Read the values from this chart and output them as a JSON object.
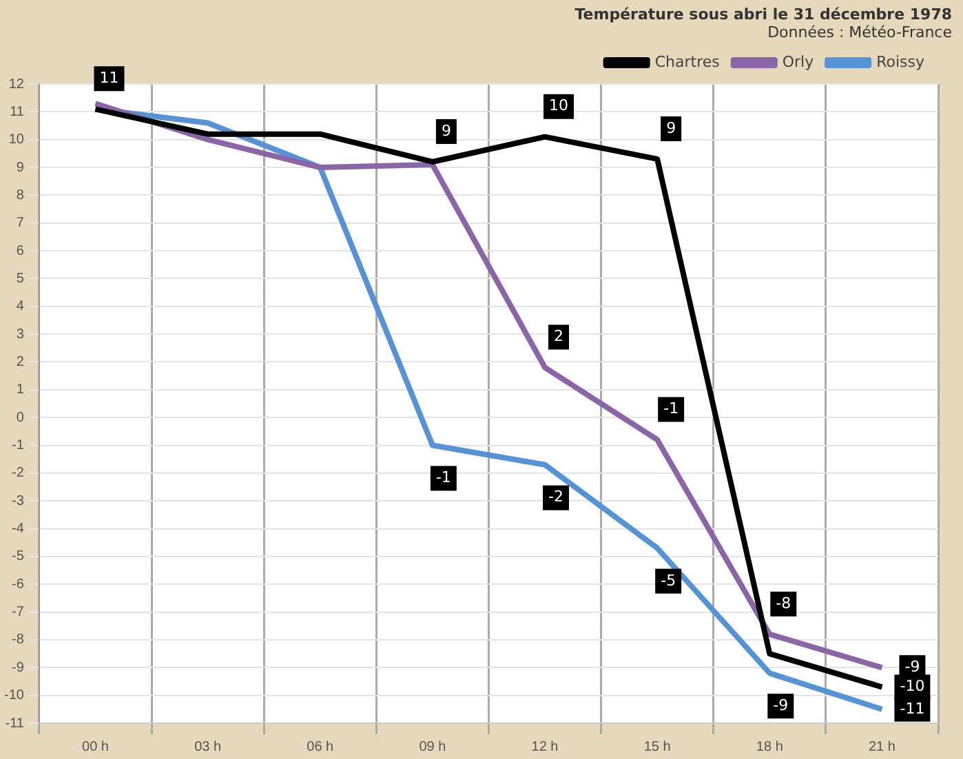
{
  "chart_data": {
    "type": "line",
    "title": "Température sous abri le 31 décembre 1978",
    "subtitle": "Données : Météo-France",
    "categories": [
      "00 h",
      "03 h",
      "06 h",
      "09 h",
      "12 h",
      "15 h",
      "18 h",
      "21 h"
    ],
    "series": [
      {
        "name": "Chartres",
        "color": "#000000",
        "values": [
          11.1,
          10.2,
          10.2,
          9.2,
          10.1,
          9.3,
          -8.5,
          -9.7
        ],
        "value_labels": [
          "11",
          null,
          null,
          "9",
          "10",
          "9",
          null,
          "-10"
        ]
      },
      {
        "name": "Orly",
        "color": "#8a65a8",
        "values": [
          11.3,
          10.0,
          9.0,
          9.1,
          1.8,
          -0.8,
          -7.8,
          -9.0
        ],
        "value_labels": [
          null,
          null,
          null,
          null,
          "2",
          "-1",
          "-8",
          "-9"
        ]
      },
      {
        "name": "Roissy",
        "color": "#5593d6",
        "values": [
          11.1,
          10.6,
          9.0,
          -1.0,
          -1.7,
          -4.7,
          -9.2,
          -10.5
        ],
        "value_labels": [
          null,
          null,
          null,
          "-1",
          "-2",
          "-5",
          "-9",
          "-11"
        ]
      }
    ],
    "ylim": [
      -11,
      12
    ],
    "yticks": [
      -11,
      -10,
      -9,
      -8,
      -7,
      -6,
      -5,
      -4,
      -3,
      -2,
      -1,
      0,
      1,
      2,
      3,
      4,
      5,
      6,
      7,
      8,
      9,
      10,
      11,
      12
    ],
    "grid": true,
    "legend": "top right",
    "marker": "none",
    "line_style": "solid"
  }
}
